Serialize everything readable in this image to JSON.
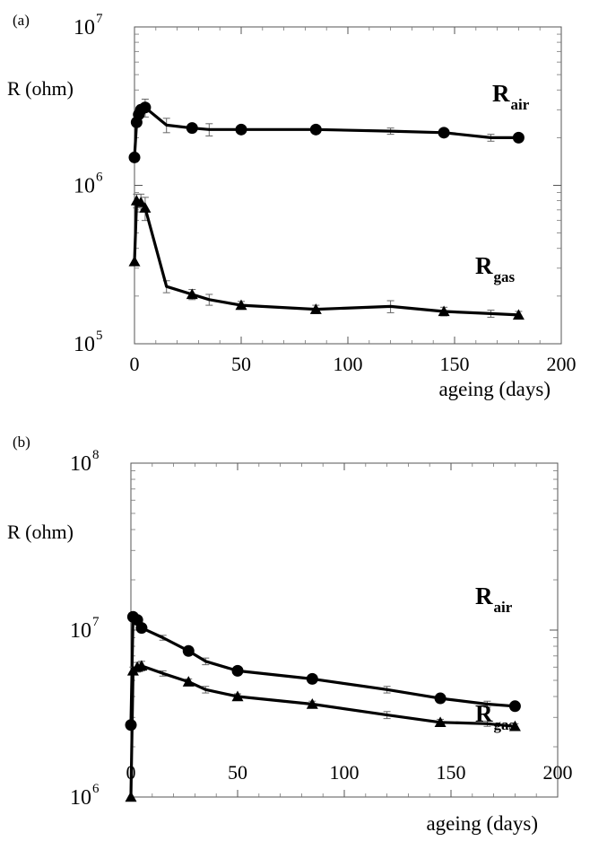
{
  "chart_data": [
    {
      "type": "line",
      "panel_label": "(a)",
      "ylabel": "R (ohm)",
      "xlabel": "ageing (days)",
      "xlim": [
        0,
        200
      ],
      "ylim": [
        100000,
        10000000
      ],
      "yscale": "log",
      "xticks": [
        0,
        50,
        100,
        150,
        200
      ],
      "yticks": [
        {
          "value": 100000,
          "base": "10",
          "exp": "5"
        },
        {
          "value": 1000000,
          "base": "10",
          "exp": "6"
        },
        {
          "value": 10000000,
          "base": "10",
          "exp": "7"
        }
      ],
      "grid": false,
      "series": [
        {
          "name": "R",
          "name_sub": "air",
          "marker": "circle",
          "x": [
            0,
            1,
            2,
            3,
            5,
            15,
            27,
            35,
            50,
            85,
            120,
            145,
            167,
            180
          ],
          "y": [
            1500000,
            2500000,
            2800000,
            3000000,
            3100000,
            2400000,
            2300000,
            2250000,
            2250000,
            2250000,
            2200000,
            2150000,
            2000000,
            2000000
          ],
          "err": [
            0,
            100000,
            150000,
            200000,
            400000,
            250000,
            100000,
            200000,
            100000,
            100000,
            100000,
            100000,
            100000,
            100000
          ],
          "markers_at": [
            0,
            1,
            2,
            3,
            4,
            6,
            8,
            9,
            11,
            13
          ]
        },
        {
          "name": "R",
          "name_sub": "gas",
          "marker": "triangle",
          "x": [
            0,
            1,
            3,
            5,
            15,
            27,
            35,
            50,
            85,
            120,
            145,
            167,
            180
          ],
          "y": [
            330000,
            800000,
            780000,
            720000,
            230000,
            205000,
            190000,
            175000,
            165000,
            172000,
            160000,
            155000,
            152000
          ],
          "err": [
            0,
            80000,
            100000,
            120000,
            20000,
            15000,
            15000,
            10000,
            10000,
            15000,
            10000,
            8000,
            8000
          ],
          "markers_at": [
            0,
            1,
            2,
            3,
            5,
            7,
            8,
            10,
            12
          ]
        }
      ]
    },
    {
      "type": "line",
      "panel_label": "(b)",
      "ylabel": "R (ohm)",
      "xlabel": "ageing (days)",
      "xlim": [
        0,
        200
      ],
      "ylim": [
        1000000,
        100000000
      ],
      "yscale": "log",
      "xticks": [
        0,
        50,
        100,
        150,
        200
      ],
      "yticks": [
        {
          "value": 1000000,
          "base": "10",
          "exp": "6"
        },
        {
          "value": 10000000,
          "base": "10",
          "exp": "7"
        },
        {
          "value": 100000000,
          "base": "10",
          "exp": "8"
        }
      ],
      "grid": false,
      "series": [
        {
          "name": "R",
          "name_sub": "air",
          "marker": "circle",
          "x": [
            0,
            1,
            3,
            5,
            15,
            27,
            35,
            50,
            85,
            120,
            145,
            167,
            180
          ],
          "y": [
            2700000,
            12000000,
            11500000,
            10300000,
            9000000,
            7500000,
            6500000,
            5700000,
            5100000,
            4400000,
            3900000,
            3600000,
            3500000
          ],
          "err": [
            0,
            0,
            0,
            0,
            300000,
            300000,
            300000,
            200000,
            200000,
            200000,
            200000,
            150000,
            150000
          ],
          "markers_at": [
            0,
            1,
            2,
            3,
            5,
            7,
            8,
            10,
            12
          ]
        },
        {
          "name": "R",
          "name_sub": "gas",
          "marker": "triangle",
          "x": [
            0,
            1,
            3,
            5,
            15,
            27,
            35,
            50,
            85,
            120,
            145,
            167,
            180
          ],
          "y": [
            1000000,
            5700000,
            6000000,
            6100000,
            5500000,
            4900000,
            4400000,
            4000000,
            3600000,
            3100000,
            2800000,
            2750000,
            2650000
          ],
          "err": [
            0,
            300000,
            400000,
            400000,
            200000,
            200000,
            200000,
            150000,
            150000,
            150000,
            120000,
            100000,
            100000
          ],
          "markers_at": [
            0,
            1,
            2,
            3,
            5,
            7,
            8,
            10,
            12
          ]
        }
      ]
    }
  ]
}
